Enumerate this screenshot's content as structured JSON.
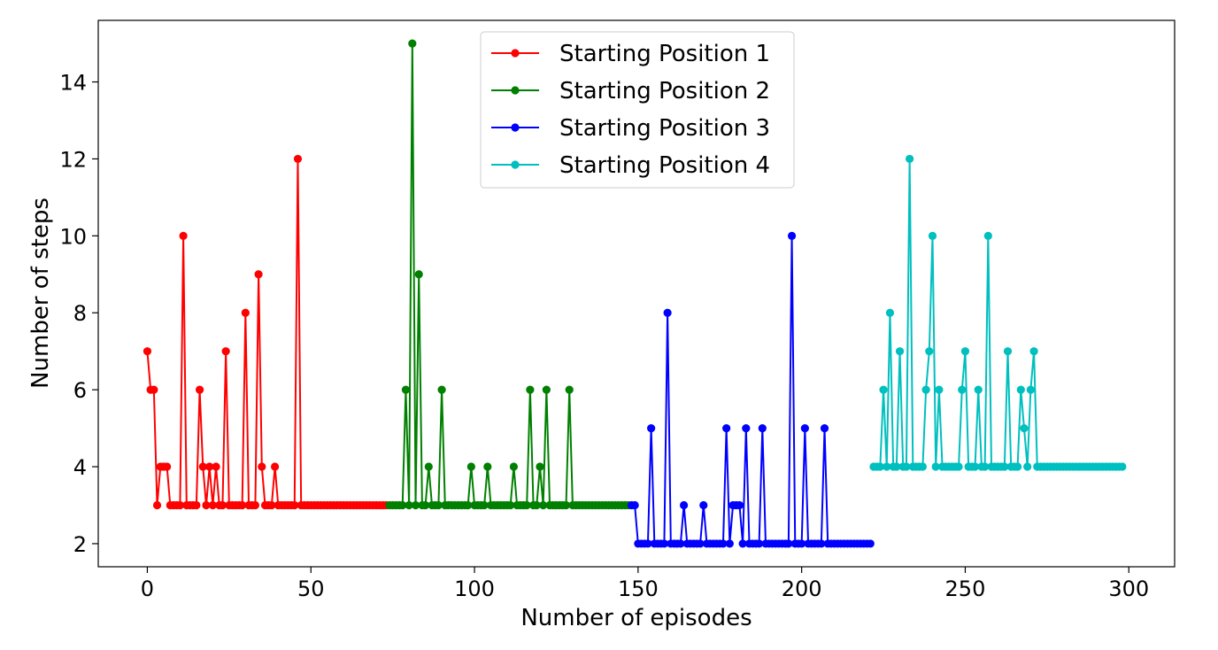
{
  "chart_data": {
    "type": "line",
    "title": "",
    "xlabel": "Number of episodes",
    "ylabel": "Number of steps",
    "xlim": [
      -15,
      314
    ],
    "ylim": [
      1.4,
      15.6
    ],
    "xticks": [
      0,
      50,
      100,
      150,
      200,
      250,
      300
    ],
    "yticks": [
      2,
      4,
      6,
      8,
      10,
      12,
      14
    ],
    "grid": false,
    "legend_position": "top-center",
    "series": [
      {
        "name": "Starting Position 1",
        "color": "#ff0000",
        "x": [
          0,
          1,
          2,
          3,
          4,
          5,
          6,
          7,
          8,
          9,
          10,
          11,
          12,
          13,
          14,
          15,
          16,
          17,
          18,
          19,
          20,
          21,
          22,
          23,
          24,
          25,
          26,
          27,
          28,
          29,
          30,
          31,
          32,
          33,
          34,
          35,
          36,
          37,
          38,
          39,
          40,
          41,
          42,
          43,
          44,
          45,
          46,
          47,
          48,
          49,
          50,
          51,
          52,
          53,
          54,
          55,
          56,
          57,
          58,
          59,
          60,
          61,
          62,
          63,
          64,
          65,
          66,
          67,
          68,
          69,
          70,
          71,
          72,
          73
        ],
        "y": [
          7,
          6,
          6,
          3,
          4,
          4,
          4,
          3,
          3,
          3,
          3,
          10,
          3,
          3,
          3,
          3,
          6,
          4,
          3,
          4,
          3,
          4,
          3,
          3,
          7,
          3,
          3,
          3,
          3,
          3,
          8,
          3,
          3,
          3,
          9,
          4,
          3,
          3,
          3,
          4,
          3,
          3,
          3,
          3,
          3,
          3,
          12,
          3,
          3,
          3,
          3,
          3,
          3,
          3,
          3,
          3,
          3,
          3,
          3,
          3,
          3,
          3,
          3,
          3,
          3,
          3,
          3,
          3,
          3,
          3,
          3,
          3,
          3,
          3
        ]
      },
      {
        "name": "Starting Position 2",
        "color": "#008000",
        "x": [
          74,
          75,
          76,
          77,
          78,
          79,
          80,
          81,
          82,
          83,
          84,
          85,
          86,
          87,
          88,
          89,
          90,
          91,
          92,
          93,
          94,
          95,
          96,
          97,
          98,
          99,
          100,
          101,
          102,
          103,
          104,
          105,
          106,
          107,
          108,
          109,
          110,
          111,
          112,
          113,
          114,
          115,
          116,
          117,
          118,
          119,
          120,
          121,
          122,
          123,
          124,
          125,
          126,
          127,
          128,
          129,
          130,
          131,
          132,
          133,
          134,
          135,
          136,
          137,
          138,
          139,
          140,
          141,
          142,
          143,
          144,
          145,
          146,
          147
        ],
        "y": [
          3,
          3,
          3,
          3,
          3,
          6,
          3,
          15,
          3,
          9,
          3,
          3,
          4,
          3,
          3,
          3,
          6,
          3,
          3,
          3,
          3,
          3,
          3,
          3,
          3,
          4,
          3,
          3,
          3,
          3,
          4,
          3,
          3,
          3,
          3,
          3,
          3,
          3,
          4,
          3,
          3,
          3,
          3,
          6,
          3,
          3,
          4,
          3,
          6,
          3,
          3,
          3,
          3,
          3,
          3,
          6,
          3,
          3,
          3,
          3,
          3,
          3,
          3,
          3,
          3,
          3,
          3,
          3,
          3,
          3,
          3,
          3,
          3,
          3
        ]
      },
      {
        "name": "Starting Position 3",
        "color": "#0000ff",
        "x": [
          148,
          149,
          150,
          151,
          152,
          153,
          154,
          155,
          156,
          157,
          158,
          159,
          160,
          161,
          162,
          163,
          164,
          165,
          166,
          167,
          168,
          169,
          170,
          171,
          172,
          173,
          174,
          175,
          176,
          177,
          178,
          179,
          180,
          181,
          182,
          183,
          184,
          185,
          186,
          187,
          188,
          189,
          190,
          191,
          192,
          193,
          194,
          195,
          196,
          197,
          198,
          199,
          200,
          201,
          202,
          203,
          204,
          205,
          206,
          207,
          208,
          209,
          210,
          211,
          212,
          213,
          214,
          215,
          216,
          217,
          218,
          219,
          220,
          221
        ],
        "y": [
          3,
          3,
          2,
          2,
          2,
          2,
          5,
          2,
          2,
          2,
          2,
          8,
          2,
          2,
          2,
          2,
          3,
          2,
          2,
          2,
          2,
          2,
          3,
          2,
          2,
          2,
          2,
          2,
          2,
          5,
          2,
          3,
          3,
          3,
          2,
          5,
          2,
          2,
          2,
          2,
          5,
          2,
          2,
          2,
          2,
          2,
          2,
          2,
          2,
          10,
          2,
          2,
          2,
          5,
          2,
          2,
          2,
          2,
          2,
          5,
          2,
          2,
          2,
          2,
          2,
          2,
          2,
          2,
          2,
          2,
          2,
          2,
          2,
          2
        ]
      },
      {
        "name": "Starting Position 4",
        "color": "#00bfbf",
        "x": [
          222,
          223,
          224,
          225,
          226,
          227,
          228,
          229,
          230,
          231,
          232,
          233,
          234,
          235,
          236,
          237,
          238,
          239,
          240,
          241,
          242,
          243,
          244,
          245,
          246,
          247,
          248,
          249,
          250,
          251,
          252,
          253,
          254,
          255,
          256,
          257,
          258,
          259,
          260,
          261,
          262,
          263,
          264,
          265,
          266,
          267,
          268,
          269,
          270,
          271,
          272,
          273,
          274,
          275,
          276,
          277,
          278,
          279,
          280,
          281,
          282,
          283,
          284,
          285,
          286,
          287,
          288,
          289,
          290,
          291,
          292,
          293,
          294,
          295,
          296,
          297,
          298
        ],
        "y": [
          4,
          4,
          4,
          6,
          4,
          8,
          4,
          4,
          7,
          4,
          4,
          12,
          4,
          4,
          4,
          4,
          6,
          7,
          10,
          4,
          6,
          4,
          4,
          4,
          4,
          4,
          4,
          6,
          7,
          4,
          4,
          4,
          6,
          4,
          4,
          10,
          4,
          4,
          4,
          4,
          4,
          7,
          4,
          4,
          4,
          6,
          5,
          4,
          6,
          7,
          4,
          4,
          4,
          4,
          4,
          4,
          4,
          4,
          4,
          4,
          4,
          4,
          4,
          4,
          4,
          4,
          4,
          4,
          4,
          4,
          4,
          4,
          4,
          4,
          4,
          4,
          4
        ]
      }
    ]
  }
}
